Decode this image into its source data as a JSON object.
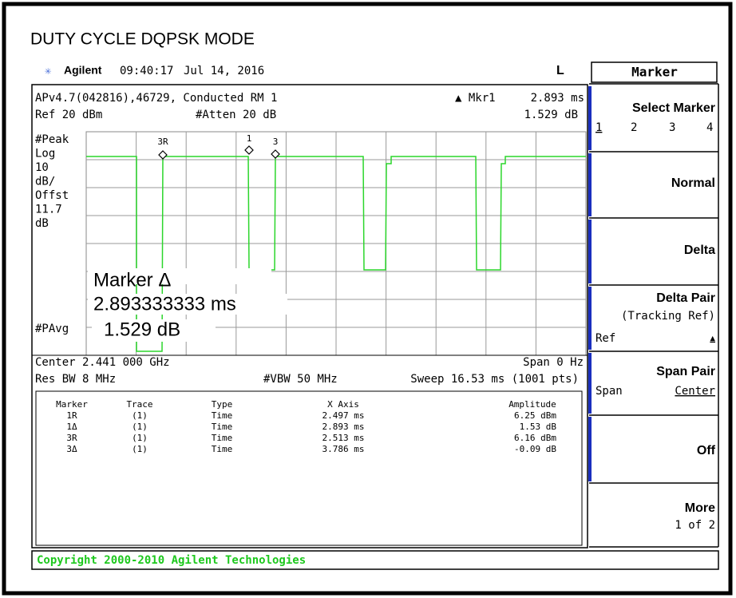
{
  "title": "DUTY CYCLE DQPSK MODE",
  "status": {
    "brand": "Agilent",
    "time": "09:40:17",
    "date": "Jul 14, 2016",
    "mode": "L"
  },
  "header": {
    "line1": "APv4.7(042816),46729, Conducted RM 1",
    "ref": "Ref 20 dBm",
    "atten": "#Atten 20 dB",
    "mkr": "▲ Mkr1",
    "mkr_x": "2.893 ms",
    "mkr_y": "1.529 dB"
  },
  "scale_labels": [
    "#Peak",
    "Log",
    "10",
    "dB/",
    "Offst",
    "11.7",
    "dB"
  ],
  "avg_label": "#PAvg",
  "marker_tags": [
    "3R",
    "1",
    "3"
  ],
  "readout": {
    "title": "Marker Δ",
    "x": "2.893333333 ms",
    "y": "1.529 dB"
  },
  "footer": {
    "center": "Center 2.441 000 GHz",
    "span": "Span 0 Hz",
    "rbw": "Res BW 8 MHz",
    "vbw": "#VBW 50 MHz",
    "sweep": "Sweep 16.53 ms (1001 pts)"
  },
  "table": {
    "headers": [
      "Marker",
      "Trace",
      "Type",
      "X Axis",
      "Amplitude"
    ],
    "rows": [
      [
        "1R",
        "(1)",
        "Time",
        "2.497 ms",
        "6.25 dBm"
      ],
      [
        "1Δ",
        "(1)",
        "Time",
        "2.893 ms",
        "1.53 dB"
      ],
      [
        "3R",
        "(1)",
        "Time",
        "2.513 ms",
        "6.16 dBm"
      ],
      [
        "3Δ",
        "(1)",
        "Time",
        "3.786 ms",
        "-0.09 dB"
      ]
    ]
  },
  "menu": {
    "title": "Marker",
    "select": {
      "label": "Select Marker",
      "options": [
        "1",
        "2",
        "3",
        "4"
      ]
    },
    "normal": "Normal",
    "delta": "Delta",
    "delta_pair": {
      "label": "Delta Pair",
      "sub": "(Tracking Ref)",
      "left": "Ref",
      "right": "▲"
    },
    "span_pair": {
      "label": "Span Pair",
      "left": "Span",
      "right": "Center"
    },
    "off": "Off",
    "more": {
      "label": "More",
      "sub": "1 of 2"
    }
  },
  "copyright": "Copyright 2000-2010 Agilent Technologies"
}
